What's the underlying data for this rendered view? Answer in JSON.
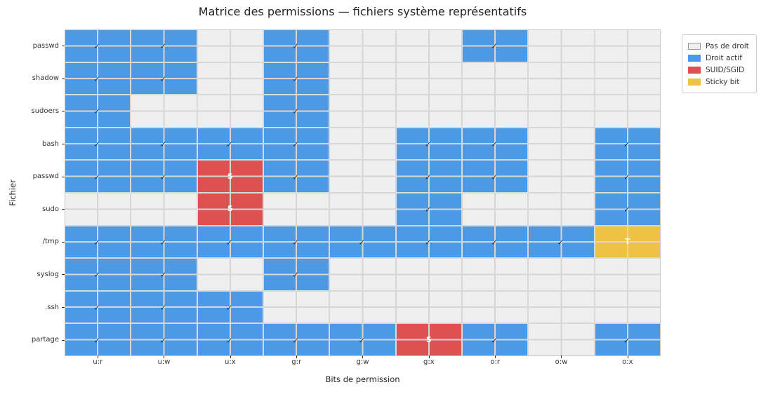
{
  "title": "Matrice des permissions — fichiers système représentatifs",
  "x_axis": {
    "label": "Bits de permission"
  },
  "y_axis": {
    "label": "Fichier"
  },
  "legend": {
    "items": [
      {
        "label": "Pas de droit",
        "color": "#efefef",
        "border": "#999999"
      },
      {
        "label": "Droit actif",
        "color": "#4c99e5",
        "border": "#4c99e5"
      },
      {
        "label": "SUID/SGID",
        "color": "#df5050",
        "border": "#df5050"
      },
      {
        "label": "Sticky bit",
        "color": "#eec243",
        "border": "#eec243"
      }
    ]
  },
  "cell_styles": {
    "0": {
      "color": "#efefef",
      "mark": "",
      "mark_class": ""
    },
    "1": {
      "color": "#4c99e5",
      "mark": "✓",
      "mark_class": "check"
    },
    "S": {
      "color": "#df5050",
      "mark": "S",
      "mark_class": "letter"
    },
    "T": {
      "color": "#eec243",
      "mark": "T",
      "mark_class": "letter"
    }
  },
  "chart_data": {
    "type": "heatmap",
    "title": "Matrice des permissions — fichiers système représentatifs",
    "xlabel": "Bits de permission",
    "ylabel": "Fichier",
    "legend_position": "upper right, outside axes",
    "grid": true,
    "columns": [
      "u:r",
      "u:w",
      "u:x",
      "g:r",
      "g:w",
      "g:x",
      "o:r",
      "o:w",
      "o:x"
    ],
    "rows": [
      "passwd",
      "shadow",
      "sudoers",
      "bash",
      "passwd",
      "sudo",
      "/tmp",
      "syslog",
      ".ssh",
      "partage"
    ],
    "cell_legend": {
      "0": "Pas de droit",
      "1": "Droit actif (✓)",
      "S": "SUID/SGID (S)",
      "T": "Sticky bit (T)"
    },
    "cells": [
      [
        "1",
        "1",
        "0",
        "1",
        "0",
        "0",
        "1",
        "0",
        "0"
      ],
      [
        "1",
        "1",
        "0",
        "1",
        "0",
        "0",
        "0",
        "0",
        "0"
      ],
      [
        "1",
        "0",
        "0",
        "1",
        "0",
        "0",
        "0",
        "0",
        "0"
      ],
      [
        "1",
        "1",
        "1",
        "1",
        "0",
        "1",
        "1",
        "0",
        "1"
      ],
      [
        "1",
        "1",
        "S",
        "1",
        "0",
        "1",
        "1",
        "0",
        "1"
      ],
      [
        "0",
        "0",
        "S",
        "0",
        "0",
        "1",
        "0",
        "0",
        "1"
      ],
      [
        "1",
        "1",
        "1",
        "1",
        "1",
        "1",
        "1",
        "1",
        "T"
      ],
      [
        "1",
        "1",
        "0",
        "1",
        "0",
        "0",
        "0",
        "0",
        "0"
      ],
      [
        "1",
        "1",
        "1",
        "0",
        "0",
        "0",
        "0",
        "0",
        "0"
      ],
      [
        "1",
        "1",
        "1",
        "1",
        "1",
        "S",
        "1",
        "0",
        "1"
      ]
    ]
  }
}
